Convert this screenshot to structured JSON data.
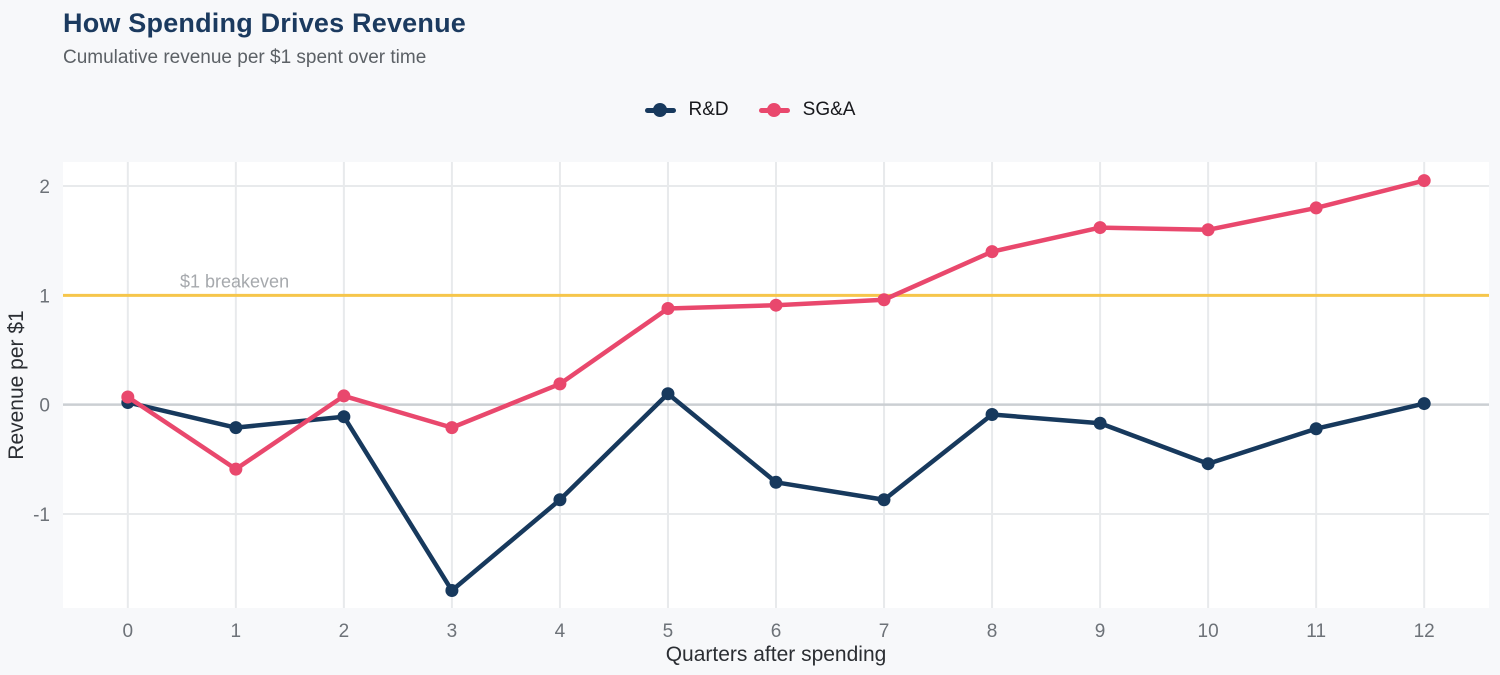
{
  "page": {
    "title": "How Spending Drives Revenue",
    "subtitle": "Cumulative revenue per $1 spent over time"
  },
  "chart_data": {
    "type": "line",
    "title": "How Spending Drives Revenue",
    "subtitle": "Cumulative revenue per $1 spent over time",
    "x": [
      0,
      1,
      2,
      3,
      4,
      5,
      6,
      7,
      8,
      9,
      10,
      11,
      12
    ],
    "series": [
      {
        "name": "R&D",
        "color": "#17395d",
        "values": [
          0.02,
          -0.21,
          -0.11,
          -1.7,
          -0.87,
          0.1,
          -0.71,
          -0.87,
          -0.09,
          -0.17,
          -0.54,
          -0.22,
          0.01
        ]
      },
      {
        "name": "SG&A",
        "color": "#e9486d",
        "values": [
          0.07,
          -0.59,
          0.08,
          -0.21,
          0.19,
          0.88,
          0.91,
          0.96,
          1.4,
          1.62,
          1.6,
          1.8,
          2.05
        ]
      }
    ],
    "xlabel": "Quarters after spending",
    "ylabel": "Revenue per $1",
    "xlim": [
      -0.6,
      12.6
    ],
    "ylim": [
      -1.86,
      2.22
    ],
    "xticks": [
      0,
      1,
      2,
      3,
      4,
      5,
      6,
      7,
      8,
      9,
      10,
      11,
      12
    ],
    "yticks": [
      -1,
      0,
      1,
      2
    ],
    "grid": true,
    "legend_position": "top-center",
    "annotation": {
      "label": "$1 breakeven",
      "y": 1,
      "line_color": "#f6c64b",
      "label_color": "#a6a9ad"
    }
  },
  "theme": {
    "background": "#f7f8fa",
    "plot_background": "#ffffff",
    "grid_color": "#e8eaec",
    "zero_line_color": "#cbcfd3",
    "tick_color": "#6d7278",
    "axis_title_color": "#2b2e33",
    "title_color": "#1b3a5f",
    "subtitle_color": "#5c6166",
    "legend_text_color": "#17181c"
  }
}
